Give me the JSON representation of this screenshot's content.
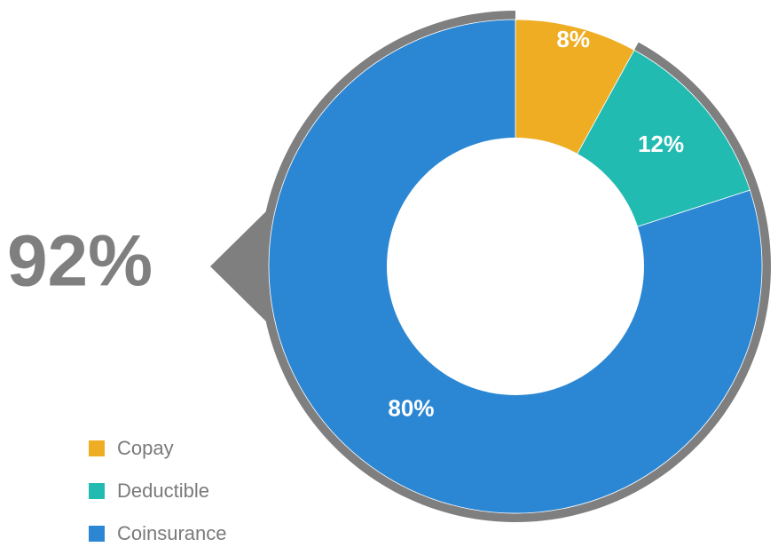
{
  "chart_data": {
    "type": "pie",
    "variant": "donut",
    "categories": [
      "Copay",
      "Deductible",
      "Coinsurance"
    ],
    "values": [
      8,
      12,
      80
    ],
    "unit": "%",
    "data_labels": [
      "8%",
      "12%",
      "80%"
    ],
    "colors": [
      "#EEAD23",
      "#22BBB1",
      "#2B87D3"
    ],
    "legend": {
      "placement": "bottom-left",
      "entries": [
        "Copay",
        "Deductible",
        "Coinsurance"
      ]
    },
    "callout": {
      "text": "92%",
      "color": "#7F7F7F",
      "arc_value": 92
    },
    "ring_outline_color": "#7F7F7F"
  }
}
